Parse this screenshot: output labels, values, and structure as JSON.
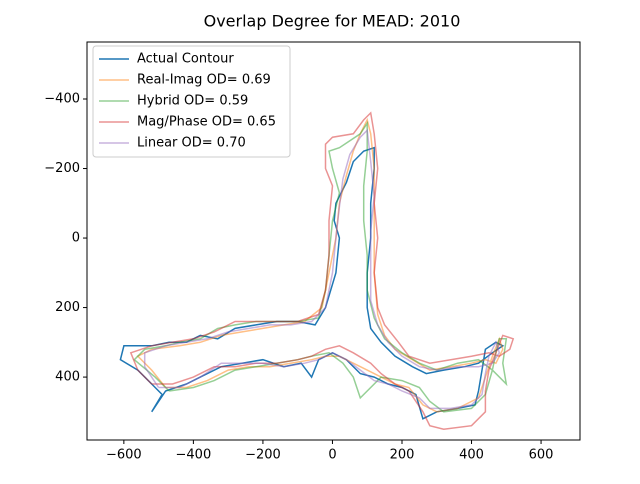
{
  "chart_data": {
    "type": "line",
    "title": "Overlap Degree for MEAD: 2010",
    "xlim": [
      -706,
      712
    ],
    "ylim": [
      -564,
      581
    ],
    "y_inverted": true,
    "xticks": [
      {
        "value": -600,
        "label": "−600"
      },
      {
        "value": -400,
        "label": "−400"
      },
      {
        "value": -200,
        "label": "−200"
      },
      0,
      200,
      400,
      600
    ],
    "yticks": [
      {
        "value": -400,
        "label": "−400"
      },
      {
        "value": -200,
        "label": "−200"
      },
      0,
      200,
      400
    ],
    "legend": "upper left",
    "series": [
      {
        "name": "Actual Contour",
        "color": "#1f77b4",
        "alpha": 1,
        "x": [
          -520,
          -480,
          -420,
          -380,
          -320,
          -260,
          -200,
          -140,
          -90,
          -60,
          -40,
          0,
          40,
          80,
          120,
          160,
          200,
          240,
          260,
          300,
          360,
          410,
          420,
          430,
          440,
          470,
          490,
          460,
          420,
          380,
          320,
          270,
          230,
          180,
          140,
          110,
          100,
          100,
          110,
          110,
          120,
          120,
          90,
          60,
          40,
          10,
          5,
          20,
          10,
          -20,
          -50,
          -100,
          -160,
          -220,
          -280,
          -330,
          -380,
          -420,
          -470,
          -520,
          -600,
          -610,
          -560,
          -520,
          -490,
          -520
        ],
        "values": [
          500,
          440,
          420,
          400,
          370,
          360,
          350,
          370,
          360,
          400,
          350,
          330,
          350,
          390,
          400,
          420,
          430,
          450,
          520,
          500,
          490,
          480,
          440,
          380,
          320,
          300,
          310,
          330,
          360,
          370,
          380,
          390,
          370,
          340,
          300,
          260,
          200,
          100,
          0,
          -100,
          -200,
          -260,
          -250,
          -220,
          -160,
          -100,
          -50,
          0,
          100,
          200,
          250,
          240,
          240,
          250,
          260,
          290,
          280,
          300,
          300,
          310,
          310,
          350,
          380,
          420,
          450,
          500
        ]
      },
      {
        "name": "Real-Imag OD= 0.69",
        "color": "#ff7f0e",
        "alpha": 0.5,
        "x": [
          -480,
          -420,
          -360,
          -300,
          -240,
          -180,
          -120,
          -60,
          -20,
          20,
          60,
          100,
          140,
          180,
          220,
          260,
          300,
          360,
          420,
          440,
          460,
          480,
          490,
          470,
          440,
          400,
          340,
          280,
          230,
          180,
          150,
          130,
          120,
          120,
          120,
          120,
          110,
          100,
          80,
          60,
          40,
          20,
          10,
          -10,
          -30,
          -80,
          -140,
          -200,
          -260,
          -320,
          -380,
          -440,
          -520,
          -560,
          -520,
          -480
        ],
        "values": [
          430,
          430,
          410,
          380,
          370,
          370,
          360,
          350,
          340,
          340,
          360,
          380,
          400,
          420,
          430,
          480,
          500,
          490,
          460,
          400,
          340,
          290,
          320,
          360,
          350,
          360,
          370,
          380,
          350,
          320,
          280,
          220,
          100,
          0,
          -100,
          -200,
          -300,
          -340,
          -300,
          -250,
          -180,
          -100,
          0,
          100,
          200,
          240,
          250,
          260,
          270,
          280,
          300,
          310,
          320,
          340,
          380,
          430
        ]
      },
      {
        "name": "Hybrid OD= 0.59",
        "color": "#2ca02c",
        "alpha": 0.5,
        "x": [
          -470,
          -400,
          -340,
          -280,
          -220,
          -160,
          -100,
          -60,
          -10,
          30,
          60,
          80,
          100,
          140,
          200,
          250,
          280,
          320,
          400,
          440,
          460,
          470,
          480,
          500,
          490,
          500,
          460,
          420,
          360,
          300,
          250,
          200,
          150,
          120,
          100,
          100,
          90,
          90,
          100,
          100,
          80,
          20,
          -10,
          0,
          20,
          0,
          -10,
          -20,
          -40,
          -100,
          -160,
          -220,
          -280,
          -330,
          -380,
          -440,
          -480,
          -540,
          -570,
          -510,
          -470
        ],
        "values": [
          440,
          430,
          410,
          380,
          370,
          360,
          350,
          340,
          330,
          360,
          400,
          460,
          440,
          400,
          410,
          430,
          470,
          500,
          490,
          450,
          380,
          330,
          290,
          290,
          360,
          420,
          380,
          350,
          360,
          380,
          360,
          330,
          290,
          230,
          150,
          50,
          -50,
          -150,
          -250,
          -330,
          -300,
          -260,
          -250,
          -200,
          -130,
          -50,
          50,
          150,
          230,
          240,
          240,
          240,
          250,
          260,
          290,
          300,
          310,
          320,
          350,
          400,
          440
        ]
      },
      {
        "name": "Mag/Phase OD= 0.65",
        "color": "#d62728",
        "alpha": 0.5,
        "x": [
          -520,
          -460,
          -400,
          -340,
          -280,
          -220,
          -160,
          -100,
          -60,
          -20,
          20,
          60,
          110,
          140,
          180,
          220,
          260,
          280,
          320,
          400,
          440,
          440,
          450,
          470,
          490,
          520,
          510,
          480,
          450,
          400,
          340,
          280,
          220,
          190,
          150,
          130,
          120,
          130,
          120,
          130,
          120,
          110,
          90,
          60,
          0,
          -20,
          -20,
          0,
          -10,
          -10,
          -20,
          -40,
          -100,
          -160,
          -220,
          -280,
          -340,
          -400,
          -460,
          -520,
          -580,
          -560,
          -520
        ],
        "values": [
          420,
          420,
          400,
          370,
          370,
          360,
          360,
          350,
          340,
          320,
          310,
          330,
          360,
          390,
          420,
          440,
          500,
          540,
          550,
          540,
          500,
          440,
          380,
          330,
          280,
          290,
          320,
          340,
          330,
          340,
          350,
          360,
          340,
          300,
          250,
          200,
          100,
          0,
          -100,
          -200,
          -300,
          -360,
          -340,
          -300,
          -290,
          -270,
          -200,
          -150,
          -50,
          50,
          150,
          220,
          240,
          240,
          240,
          240,
          270,
          290,
          300,
          310,
          330,
          380,
          420
        ]
      },
      {
        "name": "Linear OD= 0.70",
        "color": "#9467bd",
        "alpha": 0.5,
        "x": [
          -500,
          -440,
          -380,
          -320,
          -260,
          -200,
          -140,
          -80,
          -40,
          0,
          40,
          80,
          120,
          160,
          200,
          250,
          280,
          340,
          400,
          430,
          440,
          450,
          470,
          480,
          460,
          420,
          360,
          300,
          250,
          200,
          160,
          130,
          110,
          110,
          110,
          120,
          110,
          100,
          80,
          50,
          30,
          20,
          10,
          0,
          -20,
          -60,
          -120,
          -180,
          -240,
          -300,
          -360,
          -420,
          -480,
          -540,
          -540,
          -500
        ],
        "values": [
          430,
          430,
          400,
          360,
          360,
          360,
          370,
          360,
          350,
          330,
          350,
          380,
          410,
          420,
          440,
          460,
          490,
          490,
          480,
          450,
          390,
          340,
          300,
          330,
          360,
          370,
          370,
          380,
          370,
          340,
          300,
          250,
          180,
          80,
          -20,
          -120,
          -220,
          -310,
          -290,
          -240,
          -170,
          -90,
          0,
          100,
          200,
          240,
          250,
          250,
          260,
          270,
          290,
          300,
          310,
          330,
          370,
          430
        ]
      }
    ]
  }
}
